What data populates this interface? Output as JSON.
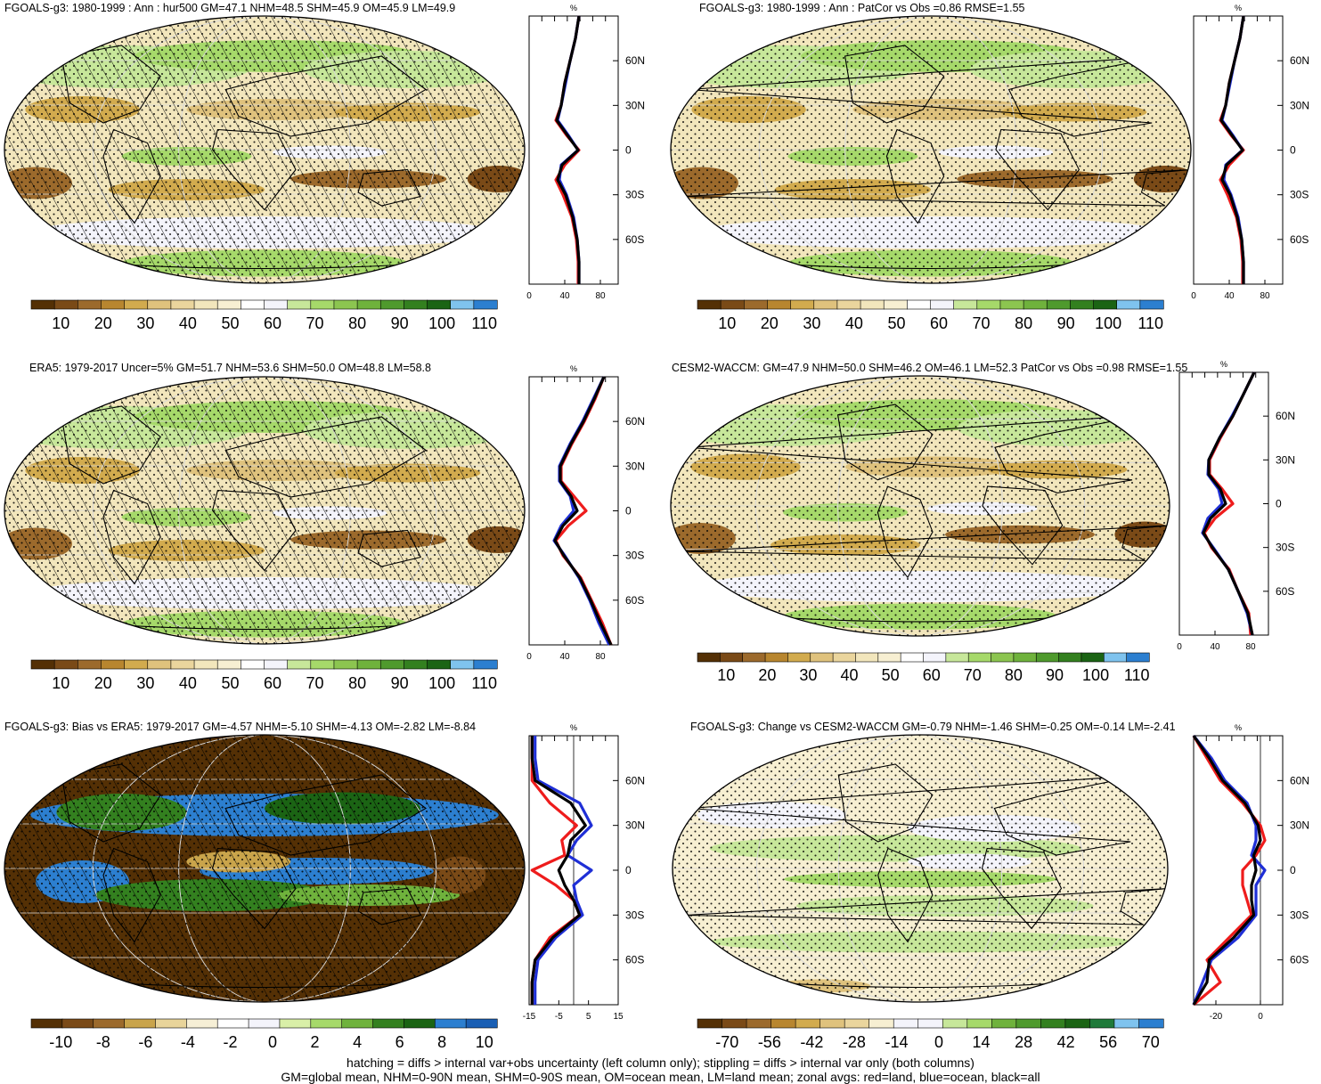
{
  "colors": {
    "clim": [
      "#543005",
      "#7a4a17",
      "#9c6a2c",
      "#b8862f",
      "#d2ab4e",
      "#dfc27d",
      "#ead59d",
      "#f2e6bc",
      "#f7efd2",
      "#ffffff",
      "#f4f4fb",
      "#c7e79a",
      "#a6d96a",
      "#8cc550",
      "#6fb23c",
      "#4f9a2d",
      "#33801f",
      "#1b6414",
      "#7fc3ee",
      "#2c7fd0"
    ],
    "bias": [
      "#543005",
      "#7a4a17",
      "#9c6a2c",
      "#c9a44b",
      "#e8d49a",
      "#f6efd6",
      "#ffffff",
      "#f4f4fb",
      "#d9efa8",
      "#a6d96a",
      "#6fb23c",
      "#33801f",
      "#1b6414",
      "#2c7fd0",
      "#1a5fb4"
    ],
    "change": [
      "#543005",
      "#7a4a17",
      "#9c6a2c",
      "#b8862f",
      "#d2ab4e",
      "#dfc27d",
      "#ead59d",
      "#f7efd2",
      "#f4f4fb",
      "#f4f4fb",
      "#c7e79a",
      "#a6d96a",
      "#6fb23c",
      "#4f9a2d",
      "#33801f",
      "#1b6414",
      "#1f7a3a",
      "#7fc3ee",
      "#2c7fd0"
    ],
    "zonal_land": "#ee1c1c",
    "zonal_ocean": "#1f2fd6",
    "zonal_all": "#000000"
  },
  "footer": {
    "line1": "hatching = diffs > internal var+obs uncertainty (left column only); stippling = diffs > internal var only (both columns)",
    "line2": "GM=global mean, NHM=0-90N mean, SHM=0-90S mean, OM=ocean mean, LM=land mean; zonal avgs: red=land, blue=ocean, black=all"
  },
  "panels": [
    {
      "id": "fgoals-clim",
      "title": "FGOALS-g3: 1980-1999 : Ann : hur500 GM=47.1 NHM=48.5 SHM=45.9 OM=45.9 LM=49.9",
      "palette": "clim",
      "hatching": true,
      "colorbar_ticks": [
        "10",
        "20",
        "30",
        "40",
        "50",
        "60",
        "70",
        "80",
        "90",
        "100",
        "110"
      ],
      "zonal_units": "%",
      "zonal_xlim": [
        0,
        100
      ],
      "zonal_xticks": [
        "0",
        "40",
        "80"
      ],
      "zonal_lat_ticks": [
        "60N",
        "30N",
        "0",
        "30S",
        "60S"
      ]
    },
    {
      "id": "fgoals-patcor",
      "title": "FGOALS-g3: 1980-1999 : Ann : PatCor vs Obs =0.86 RMSE=1.55",
      "palette": "clim",
      "hatching": false,
      "colorbar_ticks": [
        "10",
        "20",
        "30",
        "40",
        "50",
        "60",
        "70",
        "80",
        "90",
        "100",
        "110"
      ],
      "zonal_units": "%",
      "zonal_xlim": [
        0,
        100
      ],
      "zonal_xticks": [
        "0",
        "40",
        "80"
      ],
      "zonal_lat_ticks": [
        "60N",
        "30N",
        "0",
        "30S",
        "60S"
      ]
    },
    {
      "id": "era5",
      "title": "ERA5: 1979-2017 Uncer=5% GM=51.7 NHM=53.6 SHM=50.0 OM=48.8 LM=58.8",
      "palette": "clim",
      "hatching": true,
      "colorbar_ticks": [
        "10",
        "20",
        "30",
        "40",
        "50",
        "60",
        "70",
        "80",
        "90",
        "100",
        "110"
      ],
      "zonal_units": "%",
      "zonal_xlim": [
        0,
        100
      ],
      "zonal_xticks": [
        "0",
        "40",
        "80"
      ],
      "zonal_lat_ticks": [
        "60N",
        "30N",
        "0",
        "30S",
        "60S"
      ]
    },
    {
      "id": "cesm2",
      "title": "CESM2-WACCM: GM=47.9 NHM=50.0 SHM=46.2 OM=46.1 LM=52.3 PatCor vs Obs =0.98 RMSE=1.55",
      "palette": "clim",
      "hatching": false,
      "colorbar_ticks": [
        "10",
        "20",
        "30",
        "40",
        "50",
        "60",
        "70",
        "80",
        "90",
        "100",
        "110"
      ],
      "zonal_units": "%",
      "zonal_xlim": [
        0,
        100
      ],
      "zonal_xticks": [
        "0",
        "40",
        "80"
      ],
      "zonal_lat_ticks": [
        "60N",
        "30N",
        "0",
        "30S",
        "60S"
      ]
    },
    {
      "id": "bias",
      "title": "FGOALS-g3: Bias vs ERA5: 1979-2017 GM=-4.57 NHM=-5.10 SHM=-4.13 OM=-2.82 LM=-8.84",
      "palette": "bias",
      "hatching": true,
      "colorbar_ticks": [
        "-10",
        "-8",
        "-6",
        "-4",
        "-2",
        "0",
        "2",
        "4",
        "6",
        "8",
        "10"
      ],
      "zonal_units": "%",
      "zonal_xlim": [
        -15,
        15
      ],
      "zonal_xticks": [
        "-15",
        "-5",
        "5",
        "15"
      ],
      "zonal_lat_ticks": [
        "60N",
        "30N",
        "0",
        "30S",
        "60S"
      ]
    },
    {
      "id": "change",
      "title": "FGOALS-g3: Change vs CESM2-WACCM GM=-0.79 NHM=-1.46 SHM=-0.25 OM=-0.14 LM=-2.41",
      "palette": "change",
      "hatching": false,
      "colorbar_ticks": [
        "-70",
        "-56",
        "-42",
        "-28",
        "-14",
        "0",
        "14",
        "28",
        "42",
        "56",
        "70"
      ],
      "zonal_units": "%",
      "zonal_xlim": [
        -30,
        10
      ],
      "zonal_xticks": [
        "-20",
        "0"
      ],
      "zonal_lat_ticks": [
        "60N",
        "30N",
        "0",
        "30S",
        "60S"
      ]
    }
  ],
  "chart_data": [
    {
      "type": "line",
      "title": "FGOALS-g3: 1980-1999 : Ann : hur500 GM=47.1 NHM=48.5 SHM=45.9 OM=45.9 LM=49.9",
      "xlabel": "%",
      "xlim": [
        0,
        100
      ],
      "ylim": [
        -90,
        90
      ],
      "lat": [
        -90,
        -75,
        -60,
        -45,
        -30,
        -20,
        -10,
        0,
        10,
        20,
        30,
        45,
        60,
        75,
        90
      ],
      "series": [
        {
          "values": [
            55,
            55,
            53,
            48,
            38,
            30,
            40,
            56,
            42,
            30,
            36,
            40,
            46,
            52,
            56
          ]
        },
        {
          "values": [
            56,
            56,
            54,
            50,
            42,
            34,
            36,
            55,
            44,
            32,
            36,
            41,
            46,
            52,
            56
          ]
        },
        {
          "values": [
            56,
            56,
            54,
            49,
            41,
            32,
            37,
            55,
            43,
            31,
            36,
            40,
            46,
            52,
            56
          ]
        }
      ]
    },
    {
      "type": "line",
      "title": "FGOALS-g3: 1980-1999 : Ann : PatCor vs Obs =0.86 RMSE=1.55",
      "xlabel": "%",
      "xlim": [
        0,
        100
      ],
      "ylim": [
        -90,
        90
      ],
      "lat": [
        -90,
        -75,
        -60,
        -45,
        -30,
        -20,
        -10,
        0,
        10,
        20,
        30,
        45,
        60,
        75,
        90
      ],
      "series": [
        {
          "values": [
            55,
            55,
            53,
            48,
            38,
            30,
            40,
            56,
            42,
            30,
            36,
            40,
            46,
            52,
            56
          ]
        },
        {
          "values": [
            56,
            56,
            54,
            50,
            42,
            34,
            36,
            55,
            44,
            32,
            36,
            41,
            46,
            52,
            56
          ]
        },
        {
          "values": [
            56,
            56,
            54,
            49,
            41,
            32,
            37,
            55,
            43,
            31,
            36,
            40,
            46,
            52,
            56
          ]
        }
      ]
    },
    {
      "type": "line",
      "title": "ERA5: 1979-2017 Uncer=5% GM=51.7 NHM=53.6 SHM=50.0 OM=48.8 LM=58.8",
      "xlabel": "%",
      "xlim": [
        0,
        100
      ],
      "ylim": [
        -90,
        90
      ],
      "lat": [
        -90,
        -75,
        -60,
        -45,
        -30,
        -20,
        -10,
        0,
        10,
        20,
        30,
        45,
        60,
        75,
        90
      ],
      "series": [
        {
          "values": [
            92,
            82,
            70,
            58,
            38,
            30,
            44,
            64,
            50,
            36,
            36,
            48,
            62,
            74,
            84
          ]
        },
        {
          "values": [
            90,
            78,
            68,
            56,
            40,
            28,
            36,
            50,
            46,
            34,
            34,
            46,
            60,
            72,
            84
          ]
        },
        {
          "values": [
            92,
            80,
            69,
            57,
            39,
            29,
            38,
            54,
            47,
            35,
            35,
            47,
            61,
            73,
            84
          ]
        }
      ]
    },
    {
      "type": "line",
      "title": "CESM2-WACCM: GM=47.9 NHM=50.0 SHM=46.2 OM=46.1 LM=52.3 PatCor vs Obs =0.98 RMSE=1.55",
      "xlabel": "%",
      "xlim": [
        0,
        100
      ],
      "ylim": [
        -90,
        90
      ],
      "lat": [
        -90,
        -75,
        -60,
        -45,
        -30,
        -20,
        -10,
        0,
        10,
        20,
        30,
        45,
        60,
        75,
        90
      ],
      "series": [
        {
          "values": [
            80,
            78,
            66,
            56,
            36,
            28,
            40,
            60,
            48,
            34,
            34,
            46,
            60,
            72,
            84
          ]
        },
        {
          "values": [
            82,
            76,
            66,
            55,
            38,
            26,
            32,
            48,
            44,
            32,
            33,
            45,
            59,
            72,
            84
          ]
        },
        {
          "values": [
            82,
            77,
            66,
            55,
            37,
            27,
            35,
            52,
            46,
            33,
            33,
            45,
            60,
            72,
            84
          ]
        }
      ]
    },
    {
      "type": "line",
      "title": "FGOALS-g3: Bias vs ERA5: 1979-2017 GM=-4.57 NHM=-5.10 SHM=-4.13 OM=-2.82 LM=-8.84",
      "xlabel": "%",
      "xlim": [
        -15,
        15
      ],
      "ylim": [
        -90,
        90
      ],
      "lat": [
        -90,
        -75,
        -60,
        -45,
        -30,
        -20,
        -10,
        0,
        10,
        20,
        30,
        45,
        60,
        75,
        90
      ],
      "series": [
        {
          "values": [
            -14,
            -14,
            -13,
            -8,
            2,
            0,
            -6,
            -14,
            -3,
            -4,
            1,
            -8,
            -14,
            -14,
            -14
          ]
        },
        {
          "values": [
            -13,
            -13,
            -12,
            -6,
            3,
            1,
            0,
            6,
            -2,
            1,
            6,
            2,
            -12,
            -13,
            -13
          ]
        },
        {
          "values": [
            -14,
            -14,
            -13,
            -7,
            2,
            0,
            -3,
            -5,
            -2,
            -1,
            4,
            -1,
            -13,
            -14,
            -14
          ]
        }
      ]
    },
    {
      "type": "line",
      "title": "FGOALS-g3: Change vs CESM2-WACCM GM=-0.79 NHM=-1.46 SHM=-0.25 OM=-0.14 LM=-2.41",
      "xlabel": "%",
      "xlim": [
        -30,
        10
      ],
      "ylim": [
        -90,
        90
      ],
      "lat": [
        -90,
        -75,
        -60,
        -45,
        -30,
        -20,
        -10,
        0,
        10,
        20,
        30,
        45,
        60,
        75,
        90
      ],
      "series": [
        {
          "values": [
            -30,
            -18,
            -24,
            -14,
            -4,
            -6,
            -8,
            -8,
            -2,
            2,
            0,
            -8,
            -18,
            -24,
            -30
          ]
        },
        {
          "values": [
            -30,
            -26,
            -22,
            -10,
            -2,
            -2,
            -2,
            2,
            -4,
            -2,
            -2,
            -6,
            -16,
            -22,
            -30
          ]
        },
        {
          "values": [
            -30,
            -24,
            -23,
            -12,
            -3,
            -4,
            -4,
            -2,
            -3,
            0,
            -1,
            -7,
            -17,
            -23,
            -30
          ]
        }
      ]
    }
  ]
}
